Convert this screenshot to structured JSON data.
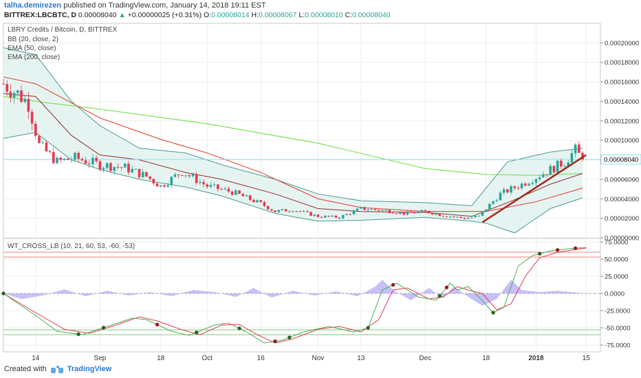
{
  "header": {
    "author": "talha.demirezen",
    "published": "published on TradingView.com, January 14, 2018 19:11 EST",
    "symbol": "BITTREX:LBCBTC, D",
    "last": "0.00008040",
    "change_arrow": "▲",
    "change": "+0.00000025 (+0.31%)",
    "o_label": "O:",
    "o": "0.00008014",
    "h_label": "H:",
    "h": "0.00008067",
    "l_label": "L:",
    "l": "0.00008010",
    "c_label": "C:",
    "c": "0.00008040"
  },
  "legend": [
    "LBRY Credits / Bitcoin, D, BITTREX",
    "BB (20, close, 2)",
    "EMA (50, close)",
    "EMA (200, close)"
  ],
  "osc_legend": "WT_CROSS_LB (10, 21, 60, 53, -60, -53)",
  "footer": {
    "created": "Created with",
    "brand": "TradingView"
  },
  "colors": {
    "up": "#26a69a",
    "down": "#e53950",
    "bb": "#47988f",
    "bb_fill": "#e6f4f1",
    "ema50": "#e0473c",
    "ema200": "#7be05a",
    "trend": "#a52a1a",
    "last_line": "#8de0ee",
    "wt1": "#4caf50",
    "wt2": "#e53950",
    "hist": "#b8b0f5",
    "ob": "#f08080",
    "os": "#7ec87e"
  },
  "chart_data": [
    {
      "type": "candlestick",
      "title": "LBRY Credits / Bitcoin, D, BITTREX",
      "ylim": [
        0,
        0.00022
      ],
      "y_ticks": [
        "0.00000000",
        "0.00002000",
        "0.00004000",
        "0.00006000",
        "0.00008000",
        "0.00010000",
        "0.00012000",
        "0.00014000",
        "0.00016000",
        "0.00018000",
        "0.00020000"
      ],
      "y_tick_values": [
        0,
        2e-05,
        4e-05,
        6e-05,
        8e-05,
        0.0001,
        0.00012,
        0.00014,
        0.00016,
        0.00018,
        0.0002
      ],
      "last_price_label": "0.00008040",
      "last_price": 8.04e-05,
      "x_ticks": [
        "14",
        "Sep",
        "18",
        "Oct",
        "16",
        "Nov",
        "13",
        "Dec",
        "18",
        "2018",
        "15"
      ],
      "x_tick_dates": [
        "2017-08-14",
        "2017-09-01",
        "2017-09-18",
        "2017-10-01",
        "2017-10-16",
        "2017-11-01",
        "2017-11-13",
        "2017-12-01",
        "2017-12-18",
        "2018-01-01",
        "2018-01-15"
      ],
      "bb_upper_anchors": [
        [
          "2017-08-05",
          0.000195
        ],
        [
          "2017-08-14",
          0.000188
        ],
        [
          "2017-08-24",
          0.00014
        ],
        [
          "2017-09-01",
          0.000115
        ],
        [
          "2017-09-12",
          9.2e-05
        ],
        [
          "2017-09-25",
          8.7e-05
        ],
        [
          "2017-10-05",
          7.5e-05
        ],
        [
          "2017-10-20",
          6e-05
        ],
        [
          "2017-11-01",
          4.5e-05
        ],
        [
          "2017-11-13",
          3.8e-05
        ],
        [
          "2017-12-01",
          3.6e-05
        ],
        [
          "2017-12-14",
          3.3e-05
        ],
        [
          "2017-12-24",
          7.8e-05
        ],
        [
          "2018-01-05",
          8.8e-05
        ],
        [
          "2018-01-14",
          9.2e-05
        ]
      ],
      "bb_lower_anchors": [
        [
          "2017-08-05",
          0.000102
        ],
        [
          "2017-08-14",
          0.000108
        ],
        [
          "2017-08-24",
          8e-05
        ],
        [
          "2017-09-01",
          7e-05
        ],
        [
          "2017-09-12",
          6e-05
        ],
        [
          "2017-09-25",
          5.2e-05
        ],
        [
          "2017-10-05",
          4.3e-05
        ],
        [
          "2017-10-20",
          2.5e-05
        ],
        [
          "2017-11-01",
          1.7e-05
        ],
        [
          "2017-11-13",
          1.8e-05
        ],
        [
          "2017-12-01",
          2.1e-05
        ],
        [
          "2017-12-14",
          1.7e-05
        ],
        [
          "2017-12-18",
          1.5e-05
        ],
        [
          "2017-12-26",
          5e-06
        ],
        [
          "2018-01-05",
          3e-05
        ],
        [
          "2018-01-14",
          4.1e-05
        ]
      ],
      "ema50_anchors": [
        [
          "2017-08-05",
          0.000165
        ],
        [
          "2017-08-14",
          0.000158
        ],
        [
          "2017-09-01",
          0.000123
        ],
        [
          "2017-09-18",
          0.000101
        ],
        [
          "2017-10-01",
          8.7e-05
        ],
        [
          "2017-10-16",
          6.7e-05
        ],
        [
          "2017-11-01",
          4e-05
        ],
        [
          "2017-11-13",
          3.1e-05
        ],
        [
          "2017-12-01",
          2.7e-05
        ],
        [
          "2017-12-18",
          2.7e-05
        ],
        [
          "2018-01-01",
          3.7e-05
        ],
        [
          "2018-01-14",
          5.1e-05
        ]
      ],
      "ema200_anchors": [
        [
          "2017-08-05",
          0.000145
        ],
        [
          "2017-08-14",
          0.00014
        ],
        [
          "2017-09-01",
          0.000132
        ],
        [
          "2017-10-01",
          0.000117
        ],
        [
          "2017-11-01",
          9.7e-05
        ],
        [
          "2017-12-01",
          7.1e-05
        ],
        [
          "2017-12-18",
          6.5e-05
        ],
        [
          "2018-01-01",
          6.4e-05
        ],
        [
          "2018-01-14",
          6.6e-05
        ]
      ],
      "ema_short_anchors": [
        [
          "2017-08-05",
          0.000148
        ],
        [
          "2017-08-14",
          0.000145
        ],
        [
          "2017-08-24",
          0.000105
        ],
        [
          "2017-09-01",
          8.5e-05
        ],
        [
          "2017-09-12",
          8e-05
        ],
        [
          "2017-09-25",
          6.7e-05
        ],
        [
          "2017-10-05",
          6e-05
        ],
        [
          "2017-10-20",
          4.5e-05
        ],
        [
          "2017-11-01",
          3e-05
        ],
        [
          "2017-11-13",
          2.7e-05
        ],
        [
          "2017-12-01",
          2.6e-05
        ],
        [
          "2017-12-14",
          2.2e-05
        ],
        [
          "2017-12-24",
          3.6e-05
        ],
        [
          "2018-01-05",
          5.5e-05
        ],
        [
          "2018-01-14",
          6.6e-05
        ]
      ],
      "trendline": [
        [
          "2017-12-17",
          1.6e-05
        ],
        [
          "2018-01-15",
          8.5e-05
        ]
      ],
      "candle_anchors": [
        [
          "2017-08-05",
          0.000158
        ],
        [
          "2017-08-09",
          0.000148
        ],
        [
          "2017-08-12",
          0.000138
        ],
        [
          "2017-08-15",
          9.5e-05
        ],
        [
          "2017-08-20",
          7.8e-05
        ],
        [
          "2017-08-25",
          8.2e-05
        ],
        [
          "2017-09-01",
          7.5e-05
        ],
        [
          "2017-09-08",
          7.2e-05
        ],
        [
          "2017-09-14",
          6.3e-05
        ],
        [
          "2017-09-18",
          5.3e-05
        ],
        [
          "2017-09-24",
          6.8e-05
        ],
        [
          "2017-10-01",
          5.3e-05
        ],
        [
          "2017-10-08",
          4.7e-05
        ],
        [
          "2017-10-16",
          3.5e-05
        ],
        [
          "2017-10-20",
          2.7e-05
        ],
        [
          "2017-10-25",
          2.9e-05
        ],
        [
          "2017-11-01",
          2.2e-05
        ],
        [
          "2017-11-07",
          2.1e-05
        ],
        [
          "2017-11-13",
          3e-05
        ],
        [
          "2017-11-20",
          2.8e-05
        ],
        [
          "2017-11-25",
          2.5e-05
        ],
        [
          "2017-12-01",
          2.7e-05
        ],
        [
          "2017-12-06",
          2.3e-05
        ],
        [
          "2017-12-12",
          2e-05
        ],
        [
          "2017-12-16",
          2.2e-05
        ],
        [
          "2017-12-18",
          3e-05
        ],
        [
          "2017-12-22",
          4.5e-05
        ],
        [
          "2017-12-28",
          5.5e-05
        ],
        [
          "2018-01-04",
          6.8e-05
        ],
        [
          "2018-01-09",
          7.8e-05
        ],
        [
          "2018-01-12",
          9e-05
        ],
        [
          "2018-01-14",
          8.04e-05
        ]
      ]
    },
    {
      "type": "line",
      "title": "WT_CROSS_LB (10, 21, 60, 53, -60, -53)",
      "ylim": [
        -85,
        80
      ],
      "y_ticks": [
        "-75.0000",
        "-50.0000",
        "-25.0000",
        "0.0000",
        "25.0000",
        "50.0000",
        "75.0000"
      ],
      "y_tick_values": [
        -75,
        -50,
        -25,
        0,
        25,
        50,
        75
      ],
      "levels": [
        60,
        53,
        -53,
        -60
      ],
      "wt1_anchors": [
        [
          "2017-08-05",
          0
        ],
        [
          "2017-08-14",
          -32
        ],
        [
          "2017-08-20",
          -55
        ],
        [
          "2017-08-27",
          -60
        ],
        [
          "2017-09-03",
          -48
        ],
        [
          "2017-09-10",
          -36
        ],
        [
          "2017-09-14",
          -38
        ],
        [
          "2017-09-21",
          -55
        ],
        [
          "2017-09-26",
          -61
        ],
        [
          "2017-10-03",
          -46
        ],
        [
          "2017-10-07",
          -43
        ],
        [
          "2017-10-12",
          -56
        ],
        [
          "2017-10-17",
          -72
        ],
        [
          "2017-10-22",
          -68
        ],
        [
          "2017-10-28",
          -56
        ],
        [
          "2017-11-04",
          -48
        ],
        [
          "2017-11-11",
          -56
        ],
        [
          "2017-11-15",
          -50
        ],
        [
          "2017-11-19",
          5
        ],
        [
          "2017-11-23",
          15
        ],
        [
          "2017-11-29",
          -5
        ],
        [
          "2017-12-04",
          -10
        ],
        [
          "2017-12-08",
          15
        ],
        [
          "2017-12-10",
          5
        ],
        [
          "2017-12-13",
          10
        ],
        [
          "2017-12-16",
          -5
        ],
        [
          "2017-12-20",
          -28
        ],
        [
          "2017-12-23",
          -20
        ],
        [
          "2017-12-27",
          40
        ],
        [
          "2017-12-31",
          55
        ],
        [
          "2018-01-05",
          62
        ],
        [
          "2018-01-10",
          65
        ],
        [
          "2018-01-15",
          67
        ]
      ],
      "wt2_anchors": [
        [
          "2017-08-05",
          0
        ],
        [
          "2017-08-14",
          -28
        ],
        [
          "2017-08-22",
          -52
        ],
        [
          "2017-08-29",
          -58
        ],
        [
          "2017-09-05",
          -47
        ],
        [
          "2017-09-12",
          -34
        ],
        [
          "2017-09-17",
          -40
        ],
        [
          "2017-09-24",
          -53
        ],
        [
          "2017-09-29",
          -60
        ],
        [
          "2017-10-05",
          -46
        ],
        [
          "2017-10-10",
          -45
        ],
        [
          "2017-10-15",
          -60
        ],
        [
          "2017-10-20",
          -72
        ],
        [
          "2017-10-25",
          -66
        ],
        [
          "2017-11-01",
          -52
        ],
        [
          "2017-11-07",
          -48
        ],
        [
          "2017-11-13",
          -56
        ],
        [
          "2017-11-18",
          -38
        ],
        [
          "2017-11-22",
          5
        ],
        [
          "2017-11-26",
          8
        ],
        [
          "2017-12-02",
          -8
        ],
        [
          "2017-12-06",
          -5
        ],
        [
          "2017-12-10",
          10
        ],
        [
          "2017-12-13",
          5
        ],
        [
          "2017-12-17",
          0
        ],
        [
          "2017-12-21",
          -24
        ],
        [
          "2017-12-25",
          -15
        ],
        [
          "2017-12-29",
          25
        ],
        [
          "2018-01-02",
          52
        ],
        [
          "2018-01-07",
          60
        ],
        [
          "2018-01-12",
          64
        ],
        [
          "2018-01-15",
          66
        ]
      ],
      "hist_anchors": [
        [
          "2017-08-05",
          0
        ],
        [
          "2017-08-10",
          -8
        ],
        [
          "2017-08-16",
          -3
        ],
        [
          "2017-08-22",
          6
        ],
        [
          "2017-08-28",
          -4
        ],
        [
          "2017-09-03",
          4
        ],
        [
          "2017-09-09",
          -3
        ],
        [
          "2017-09-15",
          2
        ],
        [
          "2017-09-21",
          -4
        ],
        [
          "2017-09-27",
          5
        ],
        [
          "2017-10-03",
          2
        ],
        [
          "2017-10-09",
          -5
        ],
        [
          "2017-10-14",
          8
        ],
        [
          "2017-10-19",
          -6
        ],
        [
          "2017-10-25",
          4
        ],
        [
          "2017-10-31",
          -3
        ],
        [
          "2017-11-06",
          3
        ],
        [
          "2017-11-12",
          -4
        ],
        [
          "2017-11-17",
          10
        ],
        [
          "2017-11-19",
          20
        ],
        [
          "2017-11-22",
          5
        ],
        [
          "2017-11-27",
          -10
        ],
        [
          "2017-12-02",
          8
        ],
        [
          "2017-12-06",
          -7
        ],
        [
          "2017-12-09",
          10
        ],
        [
          "2017-12-13",
          -5
        ],
        [
          "2017-12-17",
          -18
        ],
        [
          "2017-12-21",
          -8
        ],
        [
          "2017-12-25",
          20
        ],
        [
          "2017-12-28",
          5
        ],
        [
          "2018-01-02",
          2
        ],
        [
          "2018-01-07",
          4
        ],
        [
          "2018-01-11",
          2
        ],
        [
          "2018-01-15",
          0
        ]
      ],
      "cross_dates_red": [
        "2017-09-17",
        "2017-10-20",
        "2017-11-22",
        "2017-12-07",
        "2018-01-07",
        "2018-01-12"
      ],
      "cross_dates_green": [
        "2017-08-05",
        "2017-08-26",
        "2017-09-02",
        "2017-09-28",
        "2017-10-10",
        "2017-10-24",
        "2017-11-15",
        "2017-12-05",
        "2017-12-20",
        "2018-01-02"
      ]
    }
  ]
}
